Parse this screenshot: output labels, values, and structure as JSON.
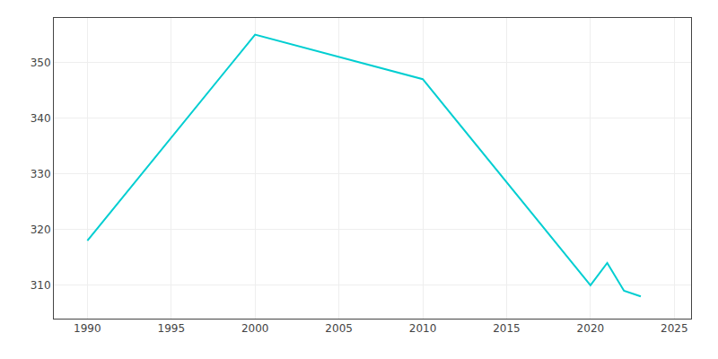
{
  "chart_data": {
    "type": "line",
    "x": [
      1990,
      2000,
      2010,
      2020,
      2021,
      2022,
      2023
    ],
    "values": [
      318,
      355,
      347,
      310,
      314,
      309,
      308
    ],
    "color": "#00CED1",
    "xlim": [
      1988,
      2026
    ],
    "ylim": [
      304,
      358
    ],
    "xticks": [
      1990,
      1995,
      2000,
      2005,
      2010,
      2015,
      2020,
      2025
    ],
    "yticks": [
      310,
      320,
      330,
      340,
      350
    ],
    "grid": true
  }
}
